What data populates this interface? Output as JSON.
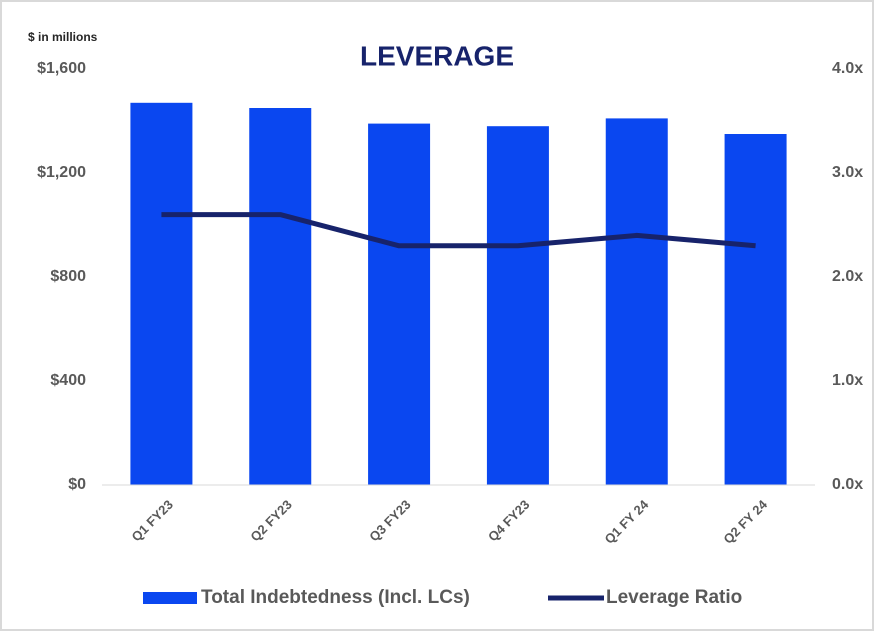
{
  "chart_data": {
    "type": "bar-line",
    "title": "LEVERAGE",
    "subtitle": "$ in millions",
    "categories": [
      "Q1 FY23",
      "Q2 FY23",
      "Q3 FY23",
      "Q4 FY23",
      "Q1 FY 24",
      "Q2 FY 24"
    ],
    "series": [
      {
        "name": "Total Indebtedness (Incl. LCs)",
        "color": "#0a47f0",
        "type": "bar",
        "axis": "y",
        "values": [
          1470,
          1450,
          1390,
          1380,
          1410,
          1350
        ]
      },
      {
        "name": "Leverage Ratio",
        "color": "#17236b",
        "type": "line",
        "axis": "y2",
        "values": [
          2.6,
          2.6,
          2.3,
          2.3,
          2.4,
          2.3
        ]
      }
    ],
    "ylim": [
      0,
      1600
    ],
    "yticks": [
      {
        "value": 0,
        "label": "$0"
      },
      {
        "value": 400,
        "label": "$400"
      },
      {
        "value": 800,
        "label": "$800"
      },
      {
        "value": 1200,
        "label": "$1,200"
      },
      {
        "value": 1600,
        "label": "$1,600"
      }
    ],
    "y2lim": [
      0,
      4
    ],
    "y2ticks": [
      {
        "value": 0,
        "label": "0.0x"
      },
      {
        "value": 1,
        "label": "1.0x"
      },
      {
        "value": 2,
        "label": "2.0x"
      },
      {
        "value": 3,
        "label": "3.0x"
      },
      {
        "value": 4,
        "label": "4.0x"
      }
    ],
    "grid": false,
    "legend": "bottom"
  }
}
